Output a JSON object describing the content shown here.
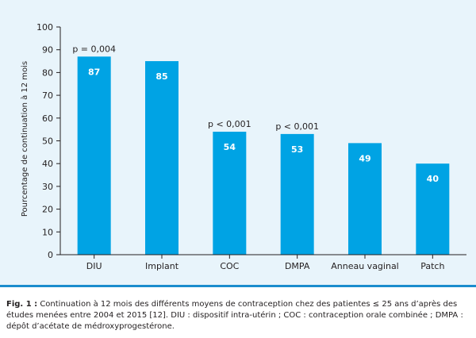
{
  "chart_data": {
    "type": "bar",
    "categories": [
      "DIU",
      "Implant",
      "COC",
      "DMPA",
      "Anneau vaginal",
      "Patch"
    ],
    "values": [
      87,
      85,
      54,
      53,
      49,
      40
    ],
    "data_labels": [
      "87",
      "85",
      "54",
      "53",
      "49",
      "40"
    ],
    "annotations": [
      "p = 0,004",
      "",
      "p < 0,001",
      "p < 0,001",
      "",
      ""
    ],
    "ylabel": "Pourcentage de continuation à 12 mois",
    "xlabel": "",
    "ylim": [
      0,
      100
    ],
    "yticks": [
      0,
      10,
      20,
      30,
      40,
      50,
      60,
      70,
      80,
      90,
      100
    ],
    "grid": false,
    "colors": {
      "bar": "#00a3e4",
      "panel": "#e8f4fb",
      "axis": "#231f20",
      "label_in_bar": "#ffffff",
      "border": "#1b8ccd"
    }
  },
  "caption": {
    "label": "Fig. 1 :",
    "text": " Continuation à 12 mois des différents moyens de contraception chez des patientes ≤ 25 ans d’après des études menées entre 2004 et 2015 [12]. DIU : dispositif intra-utérin ; COC : contraception orale combinée ; DMPA : dépôt d’acétate de médroxyprogestérone."
  }
}
